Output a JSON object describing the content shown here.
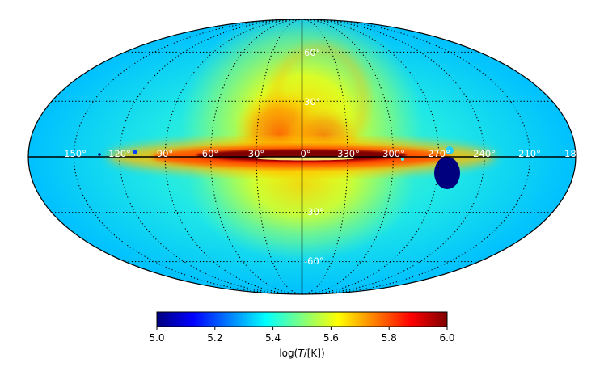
{
  "map": {
    "projection": "mollweide",
    "colormap": "jet",
    "longitude_labels": [
      "150°",
      "120°",
      "90°",
      "60°",
      "30°",
      "0°",
      "330°",
      "300°",
      "270°",
      "240°",
      "210°",
      "18"
    ],
    "latitude_labels": [
      "60°",
      "30°",
      "-30°",
      "-60°"
    ]
  },
  "colorbar": {
    "min": 5.0,
    "max": 6.0,
    "ticks": [
      "5.0",
      "5.2",
      "5.4",
      "5.6",
      "5.8",
      "6.0"
    ],
    "label_prefix": "log(",
    "label_var": "T",
    "label_suffix": "/[K])"
  },
  "colors": {
    "jet_stops": [
      "#00007f",
      "#0000ff",
      "#007fff",
      "#00ffff",
      "#7fff7f",
      "#ffff00",
      "#ff7f00",
      "#ff0000",
      "#7f0000"
    ]
  }
}
